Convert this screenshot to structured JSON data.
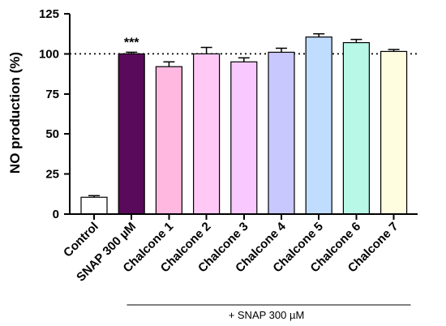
{
  "chart_data": {
    "type": "bar",
    "ylabel": "NO production (%)",
    "ylim": [
      0,
      125
    ],
    "yticks": [
      0,
      25,
      50,
      75,
      100,
      125
    ],
    "reference_line": 100,
    "reference_line_style": "dotted",
    "grid": false,
    "categories": [
      "Control",
      "SNAP 300 µM",
      "Chalcone 1",
      "Chalcone 2",
      "Chalcone 3",
      "Chalcone 4",
      "Chalcone 5",
      "Chalcone 6",
      "Chalcone 7"
    ],
    "values": [
      10.5,
      100,
      92,
      100,
      95,
      101,
      110.5,
      107,
      101.5
    ],
    "errors": [
      1,
      1,
      3,
      4,
      2.5,
      2.5,
      2,
      2,
      1.2
    ],
    "colors": [
      "#ffffff",
      "#5a0a5a",
      "#ffb8e0",
      "#ffc8f5",
      "#f8c8ff",
      "#c8c8ff",
      "#c0dcff",
      "#b8f8e6",
      "#fffde0"
    ],
    "annotations": [
      {
        "category": "SNAP 300 µM",
        "text": "***"
      }
    ],
    "group_bracket": {
      "label": "+ SNAP 300 µM",
      "from": "Chalcone 1",
      "to": "Chalcone 7"
    }
  }
}
